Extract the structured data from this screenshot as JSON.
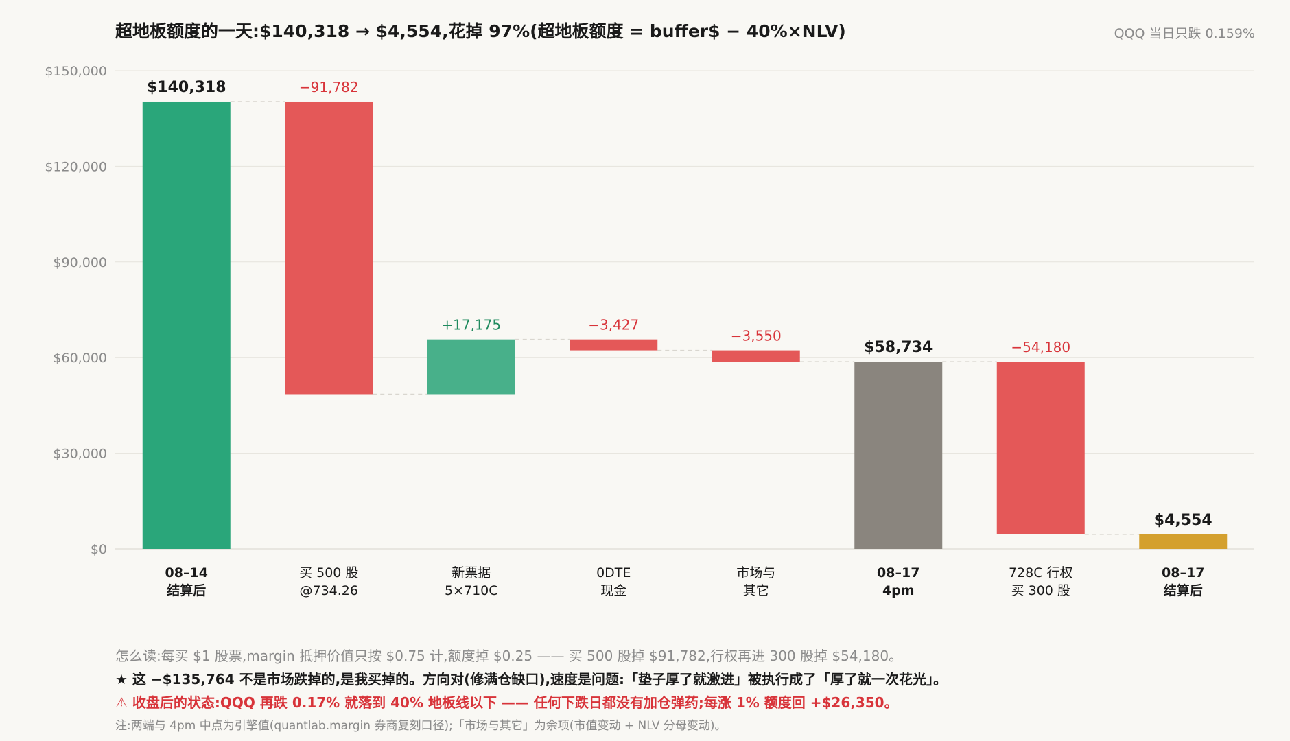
{
  "header": {
    "title": "超地板额度的一天:$140,318 → $4,554,花掉 97%(超地板额度 = buffer$ − 40%×NLV)",
    "note_right": "QQQ 当日只跌 0.159%"
  },
  "colors": {
    "green": "#2aa67a",
    "green_light": "#48b08a",
    "red": "#e45858",
    "gray": "#8a857e",
    "gold": "#d4a02e",
    "label_red": "#d8343a",
    "label_green": "#1f8a5e"
  },
  "chart_data": {
    "type": "bar",
    "subtype": "waterfall",
    "ylim": [
      0,
      150000
    ],
    "yticks": [
      0,
      30000,
      60000,
      90000,
      120000,
      150000
    ],
    "ytick_labels": [
      "$0",
      "$30,000",
      "$60,000",
      "$90,000",
      "$120,000",
      "$150,000"
    ],
    "grid": true,
    "bars": [
      {
        "category": [
          "08–14",
          "结算后"
        ],
        "kind": "total",
        "start": 0,
        "end": 140318,
        "label": "$140,318",
        "color_key": "green",
        "bold_category": true
      },
      {
        "category": [
          "买 500 股",
          "@734.26"
        ],
        "kind": "delta",
        "start": 140318,
        "end": 48536,
        "label": "−91,782",
        "color_key": "red",
        "bold_category": false
      },
      {
        "category": [
          "新票据",
          "5×710C"
        ],
        "kind": "delta",
        "start": 48536,
        "end": 65711,
        "label": "+17,175",
        "color_key": "green_light",
        "bold_category": false
      },
      {
        "category": [
          "0DTE",
          "现金"
        ],
        "kind": "delta",
        "start": 65711,
        "end": 62284,
        "label": "−3,427",
        "color_key": "red",
        "bold_category": false
      },
      {
        "category": [
          "市场与",
          "其它"
        ],
        "kind": "delta",
        "start": 62284,
        "end": 58734,
        "label": "−3,550",
        "color_key": "red",
        "bold_category": false
      },
      {
        "category": [
          "08–17",
          "4pm"
        ],
        "kind": "total",
        "start": 0,
        "end": 58734,
        "label": "$58,734",
        "color_key": "gray",
        "bold_category": true
      },
      {
        "category": [
          "728C 行权",
          "买 300 股"
        ],
        "kind": "delta",
        "start": 58734,
        "end": 4554,
        "label": "−54,180",
        "color_key": "red",
        "bold_category": false
      },
      {
        "category": [
          "08–17",
          "结算后"
        ],
        "kind": "total",
        "start": 0,
        "end": 4554,
        "label": "$4,554",
        "color_key": "gold",
        "bold_category": true
      }
    ]
  },
  "footer": {
    "how_to_read": "怎么读:每买 $1 股票,margin 抵押价值只按 $0.75 计,额度掉 $0.25 —— 买 500 股掉 $91,782,行权再进 300 股掉 $54,180。",
    "star": "★ 这 −$135,764 不是市场跌掉的,是我买掉的。方向对(修满仓缺口),速度是问题:「垫子厚了就激进」被执行成了「厚了就一次花光」。",
    "warning": "⚠ 收盘后的状态:QQQ 再跌 0.17% 就落到 40% 地板线以下 —— 任何下跌日都没有加仓弹药;每涨 1% 额度回 +$26,350。",
    "note": "注:两端与 4pm 中点为引擎值(quantlab.margin 券商复刻口径);「市场与其它」为余项(市值变动 + NLV 分母变动)。"
  }
}
